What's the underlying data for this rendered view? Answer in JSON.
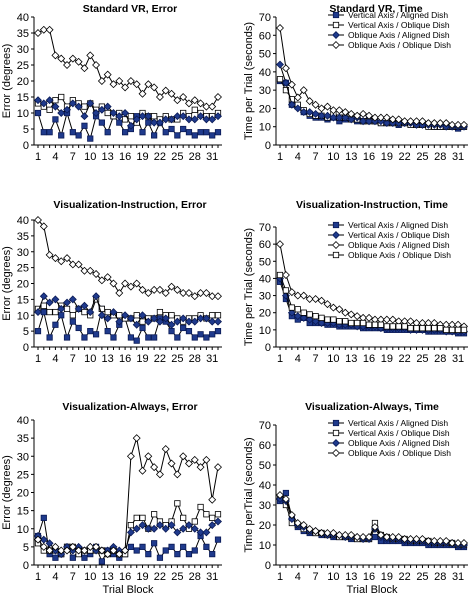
{
  "chart_data": [
    {
      "type": "line",
      "title": "Standard VR, Error",
      "xlabel": "",
      "ylabel": "Error (degrees)",
      "xlim": [
        1,
        32
      ],
      "ylim": [
        0,
        40
      ],
      "yticks": [
        0,
        5,
        10,
        15,
        20,
        25,
        30,
        35,
        40
      ],
      "xticks": [
        1,
        4,
        7,
        10,
        13,
        16,
        19,
        22,
        25,
        28,
        31
      ],
      "legend": "none",
      "grid": false,
      "series": [
        {
          "marker": "square-filled",
          "values": [
            10,
            4,
            4,
            8,
            3,
            10,
            4,
            3,
            6,
            2,
            9,
            7,
            4,
            9,
            7,
            4,
            5,
            9,
            4,
            7,
            3,
            7,
            4,
            5,
            3,
            5,
            4,
            3,
            4,
            4,
            3,
            4
          ]
        },
        {
          "marker": "square-open",
          "values": [
            13,
            12,
            11,
            14,
            15,
            12,
            14,
            13,
            12,
            13,
            11,
            12,
            10,
            9,
            10,
            8,
            9,
            7,
            10,
            9,
            9,
            8,
            9,
            8,
            8,
            10,
            9,
            11,
            10,
            9,
            9,
            10
          ]
        },
        {
          "marker": "diamond-filled",
          "values": [
            14,
            13,
            14,
            12,
            10,
            11,
            13,
            12,
            9,
            13,
            10,
            11,
            12,
            10,
            9,
            10,
            6,
            8,
            9,
            9,
            7,
            7,
            8,
            8,
            9,
            9,
            8,
            8,
            9,
            8,
            8,
            9
          ]
        },
        {
          "marker": "diamond-open",
          "values": [
            35,
            36,
            36,
            28,
            27,
            25,
            27,
            26,
            24,
            28,
            25,
            20,
            22,
            19,
            20,
            18,
            20,
            19,
            16,
            19,
            18,
            15,
            17,
            16,
            14,
            15,
            13,
            14,
            13,
            12,
            12,
            15
          ]
        }
      ]
    },
    {
      "type": "line",
      "title": "Standard VR, Time",
      "xlabel": "",
      "ylabel": "Time per Trial (seconds)",
      "xlim": [
        1,
        32
      ],
      "ylim": [
        0,
        70
      ],
      "yticks": [
        0,
        10,
        20,
        30,
        40,
        50,
        60,
        70
      ],
      "xticks": [
        1,
        4,
        7,
        10,
        13,
        16,
        19,
        22,
        25,
        28,
        31
      ],
      "legend": "top-right",
      "grid": false,
      "series": [
        {
          "name": "Vertical Axis / Aligned Dish",
          "marker": "square-filled",
          "values": [
            35,
            34,
            22,
            21,
            18,
            16,
            15,
            15,
            14,
            15,
            13,
            14,
            14,
            13,
            13,
            14,
            13,
            12,
            12,
            12,
            11,
            12,
            11,
            11,
            11,
            11,
            10,
            10,
            10,
            10,
            9,
            10
          ]
        },
        {
          "name": "Vertical Axis / Oblique Dish",
          "marker": "square-open",
          "values": [
            36,
            30,
            25,
            22,
            19,
            17,
            16,
            16,
            15,
            17,
            15,
            15,
            14,
            14,
            13,
            13,
            13,
            12,
            12,
            12,
            12,
            12,
            11,
            11,
            11,
            10,
            10,
            10,
            10,
            10,
            10,
            10
          ]
        },
        {
          "name": "Oblique Axis / Aligned Dish",
          "marker": "diamond-filled",
          "values": [
            44,
            34,
            22,
            20,
            18,
            18,
            17,
            16,
            16,
            15,
            15,
            15,
            14,
            15,
            13,
            13,
            13,
            13,
            12,
            12,
            12,
            12,
            12,
            11,
            11,
            11,
            11,
            11,
            10,
            10,
            10,
            10
          ]
        },
        {
          "name": "Oblique Axis / Oblique Dish",
          "marker": "diamond-open",
          "values": [
            64,
            42,
            33,
            26,
            30,
            24,
            22,
            20,
            21,
            19,
            19,
            18,
            17,
            16,
            17,
            16,
            15,
            15,
            15,
            14,
            14,
            13,
            13,
            13,
            13,
            12,
            12,
            12,
            12,
            11,
            11,
            11
          ]
        }
      ]
    },
    {
      "type": "line",
      "title": "Visualization-Instruction, Error",
      "xlabel": "",
      "ylabel": "Error (degrees)",
      "xlim": [
        1,
        32
      ],
      "ylim": [
        0,
        40
      ],
      "yticks": [
        0,
        5,
        10,
        15,
        20,
        25,
        30,
        35,
        40
      ],
      "xticks": [
        1,
        4,
        7,
        10,
        13,
        16,
        19,
        22,
        25,
        28,
        31
      ],
      "legend": "none",
      "grid": false,
      "series": [
        {
          "marker": "square-filled",
          "values": [
            5,
            11,
            3,
            7,
            10,
            3,
            8,
            6,
            3,
            5,
            4,
            12,
            5,
            3,
            7,
            9,
            3,
            2,
            6,
            3,
            3,
            9,
            8,
            5,
            3,
            6,
            5,
            3,
            4,
            3,
            4,
            5
          ]
        },
        {
          "marker": "square-open",
          "values": [
            12,
            13,
            11,
            11,
            13,
            12,
            10,
            12,
            11,
            10,
            15,
            12,
            11,
            10,
            10,
            9,
            9,
            10,
            8,
            9,
            9,
            11,
            10,
            10,
            9,
            8,
            9,
            9,
            10,
            9,
            10,
            10
          ]
        },
        {
          "marker": "diamond-filled",
          "values": [
            11,
            16,
            14,
            15,
            12,
            14,
            15,
            12,
            13,
            11,
            16,
            10,
            9,
            11,
            8,
            10,
            9,
            7,
            10,
            8,
            9,
            8,
            9,
            7,
            8,
            9,
            8,
            8,
            9,
            9,
            8,
            8
          ]
        },
        {
          "marker": "diamond-open",
          "values": [
            40,
            38,
            29,
            28,
            27,
            28,
            26,
            26,
            24,
            24,
            23,
            21,
            22,
            20,
            17,
            20,
            19,
            20,
            18,
            17,
            18,
            18,
            17,
            19,
            18,
            17,
            17,
            16,
            17,
            17,
            16,
            16
          ]
        }
      ]
    },
    {
      "type": "line",
      "title": "Visualization-Instruction, Time",
      "xlabel": "",
      "ylabel": "Time per Trial (seconds)",
      "xlim": [
        1,
        32
      ],
      "ylim": [
        0,
        70
      ],
      "yticks": [
        0,
        10,
        20,
        30,
        40,
        50,
        60,
        70
      ],
      "xticks": [
        1,
        4,
        7,
        10,
        13,
        16,
        19,
        22,
        25,
        28,
        31
      ],
      "legend": "top-right",
      "grid": false,
      "series": [
        {
          "name": "Vertical Axis / Aligned Dish",
          "marker": "square-filled",
          "values": [
            38,
            28,
            18,
            16,
            17,
            14,
            14,
            14,
            13,
            13,
            12,
            12,
            12,
            12,
            11,
            11,
            11,
            11,
            10,
            10,
            10,
            10,
            10,
            10,
            10,
            9,
            9,
            9,
            9,
            9,
            8,
            8
          ]
        },
        {
          "name": "Vertical Axis / Oblique Dish",
          "marker": "diamond-filled",
          "values": [
            40,
            30,
            20,
            18,
            17,
            16,
            15,
            14,
            14,
            14,
            13,
            13,
            13,
            12,
            12,
            12,
            12,
            11,
            11,
            11,
            11,
            11,
            10,
            10,
            10,
            10,
            10,
            10,
            9,
            9,
            9,
            9
          ]
        },
        {
          "name": "Oblique Axis / Aligned Dish",
          "marker": "diamond-open",
          "values": [
            60,
            42,
            32,
            30,
            30,
            28,
            28,
            27,
            25,
            23,
            22,
            20,
            19,
            18,
            17,
            17,
            16,
            16,
            16,
            16,
            15,
            15,
            15,
            14,
            14,
            14,
            14,
            13,
            13,
            13,
            13,
            12
          ]
        },
        {
          "name": "Oblique Axis / Oblique Dish",
          "marker": "square-open",
          "values": [
            42,
            33,
            23,
            22,
            20,
            19,
            18,
            17,
            16,
            16,
            15,
            15,
            14,
            14,
            14,
            13,
            13,
            13,
            12,
            12,
            12,
            12,
            11,
            11,
            11,
            11,
            11,
            11,
            10,
            10,
            10,
            10
          ]
        }
      ]
    },
    {
      "type": "line",
      "title": "Visualization-Always, Error",
      "xlabel": "Trial Block",
      "ylabel": "Error (degrees)",
      "xlim": [
        1,
        32
      ],
      "ylim": [
        0,
        40
      ],
      "yticks": [
        0,
        5,
        10,
        15,
        20,
        25,
        30,
        35,
        40
      ],
      "xticks": [
        1,
        4,
        7,
        10,
        13,
        16,
        19,
        22,
        25,
        28,
        31
      ],
      "legend": "none",
      "grid": false,
      "series": [
        {
          "marker": "square-filled",
          "values": [
            8,
            13,
            3,
            2,
            3,
            5,
            2,
            4,
            2,
            3,
            5,
            1,
            4,
            3,
            2,
            3,
            5,
            4,
            5,
            3,
            6,
            2,
            4,
            5,
            3,
            5,
            3,
            4,
            8,
            5,
            3,
            7
          ]
        },
        {
          "marker": "square-open",
          "values": [
            6,
            4,
            4,
            4,
            3,
            5,
            5,
            3,
            4,
            4,
            4,
            4,
            3,
            4,
            3,
            3,
            11,
            13,
            13,
            10,
            14,
            12,
            11,
            12,
            17,
            13,
            10,
            12,
            16,
            14,
            13,
            14
          ]
        },
        {
          "marker": "diamond-filled",
          "values": [
            8,
            7,
            6,
            4,
            3,
            5,
            4,
            5,
            4,
            5,
            4,
            4,
            4,
            5,
            4,
            4,
            9,
            10,
            11,
            10,
            10,
            11,
            10,
            11,
            9,
            10,
            11,
            10,
            9,
            9,
            11,
            12
          ]
        },
        {
          "marker": "diamond-open",
          "values": [
            7,
            5,
            4,
            5,
            4,
            4,
            5,
            4,
            4,
            5,
            5,
            4,
            3,
            4,
            3,
            4,
            30,
            35,
            26,
            30,
            27,
            25,
            32,
            28,
            25,
            30,
            28,
            29,
            27,
            29,
            18,
            27
          ]
        }
      ]
    },
    {
      "type": "line",
      "title": "Visualization-Always, Time",
      "xlabel": "Trial Block",
      "ylabel": "Time perTrial (seconds)",
      "xlim": [
        1,
        32
      ],
      "ylim": [
        0,
        70
      ],
      "yticks": [
        0,
        10,
        20,
        30,
        40,
        50,
        60,
        70
      ],
      "xticks": [
        1,
        4,
        7,
        10,
        13,
        16,
        19,
        22,
        25,
        28,
        31
      ],
      "legend": "top-right",
      "grid": false,
      "series": [
        {
          "name": "Vertical Axis / Aligned Dish",
          "marker": "square-filled",
          "values": [
            32,
            36,
            24,
            19,
            17,
            16,
            16,
            15,
            15,
            14,
            14,
            14,
            13,
            13,
            13,
            13,
            14,
            12,
            12,
            12,
            12,
            11,
            11,
            11,
            11,
            10,
            10,
            10,
            10,
            10,
            9,
            9
          ]
        },
        {
          "name": "Vertical Axis / Oblique Dish",
          "marker": "square-open",
          "values": [
            34,
            30,
            21,
            20,
            18,
            17,
            16,
            16,
            15,
            15,
            14,
            14,
            14,
            13,
            13,
            13,
            21,
            15,
            14,
            13,
            13,
            13,
            12,
            12,
            12,
            12,
            11,
            11,
            11,
            11,
            10,
            10
          ]
        },
        {
          "name": "Oblique Axis / Aligned Dish",
          "marker": "diamond-filled",
          "values": [
            33,
            32,
            23,
            20,
            19,
            17,
            17,
            16,
            15,
            15,
            15,
            14,
            14,
            14,
            13,
            13,
            18,
            14,
            13,
            13,
            13,
            12,
            12,
            12,
            12,
            11,
            11,
            11,
            11,
            11,
            10,
            10
          ]
        },
        {
          "name": "Oblique Axis / Oblique Dish",
          "marker": "diamond-open",
          "values": [
            35,
            33,
            25,
            21,
            20,
            18,
            17,
            16,
            16,
            16,
            15,
            15,
            15,
            14,
            14,
            14,
            19,
            15,
            14,
            14,
            14,
            13,
            13,
            13,
            13,
            12,
            12,
            12,
            12,
            11,
            11,
            11
          ]
        }
      ]
    }
  ]
}
